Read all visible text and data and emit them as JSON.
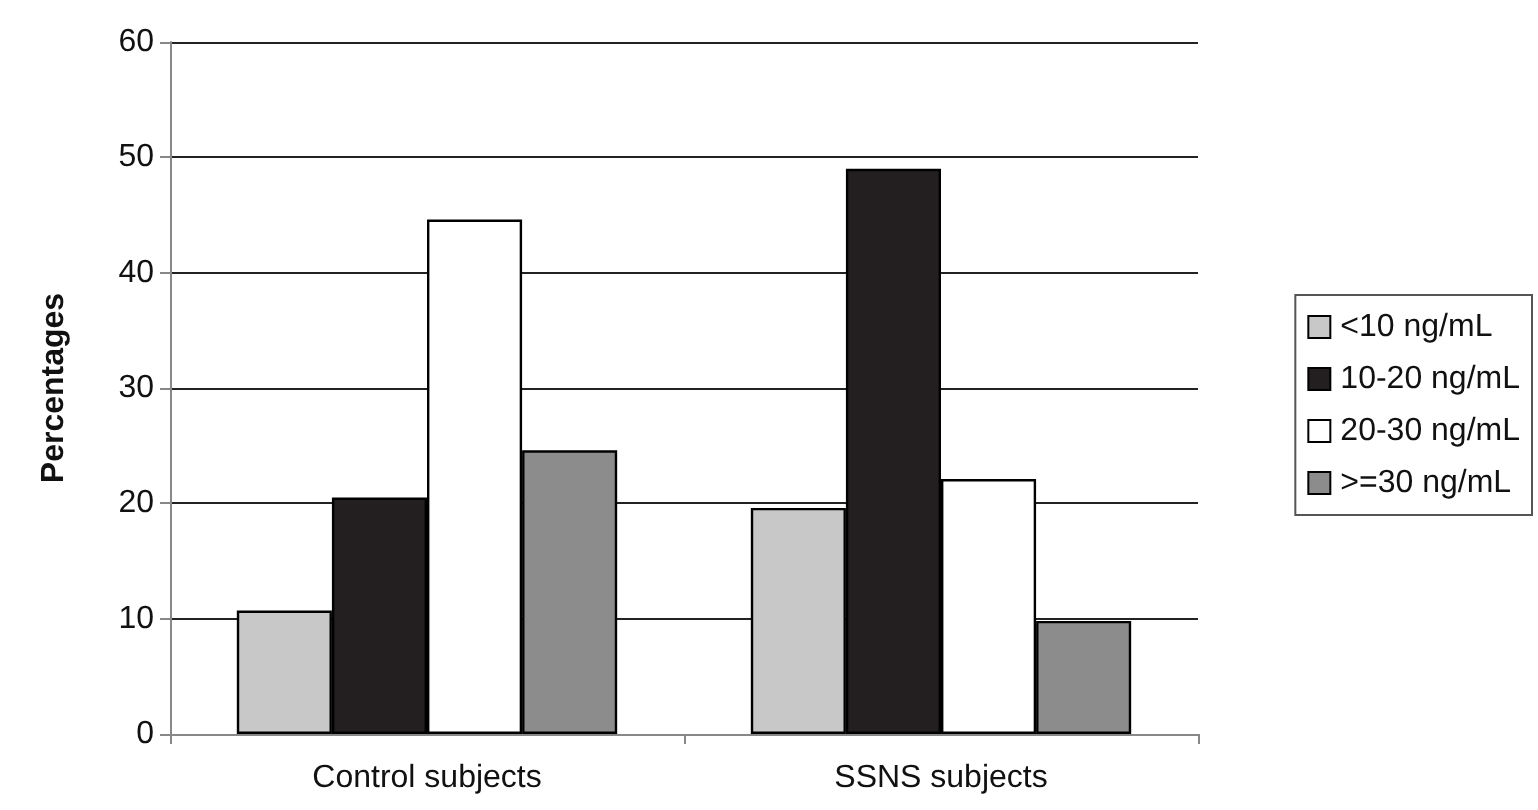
{
  "chart_data": {
    "type": "bar",
    "ylabel": "Percentages",
    "categories": [
      "Control subjects",
      "SSNS subjects"
    ],
    "series": [
      {
        "name": "<10 ng/mL",
        "color": "#c8c8c8",
        "values": [
          10.7,
          19.6
        ]
      },
      {
        "name": "10-20 ng/mL",
        "color": "#231f20",
        "values": [
          20.5,
          49.0
        ]
      },
      {
        "name": "20-30 ng/mL",
        "color": "#ffffff",
        "values": [
          44.6,
          22.1
        ]
      },
      {
        "name": ">=30 ng/mL",
        "color": "#8c8c8c",
        "values": [
          24.6,
          9.8
        ]
      }
    ],
    "ylim": [
      0,
      60
    ],
    "yticks": [
      0,
      10,
      20,
      30,
      40,
      50,
      60
    ],
    "grid": "y",
    "legend": "right"
  }
}
